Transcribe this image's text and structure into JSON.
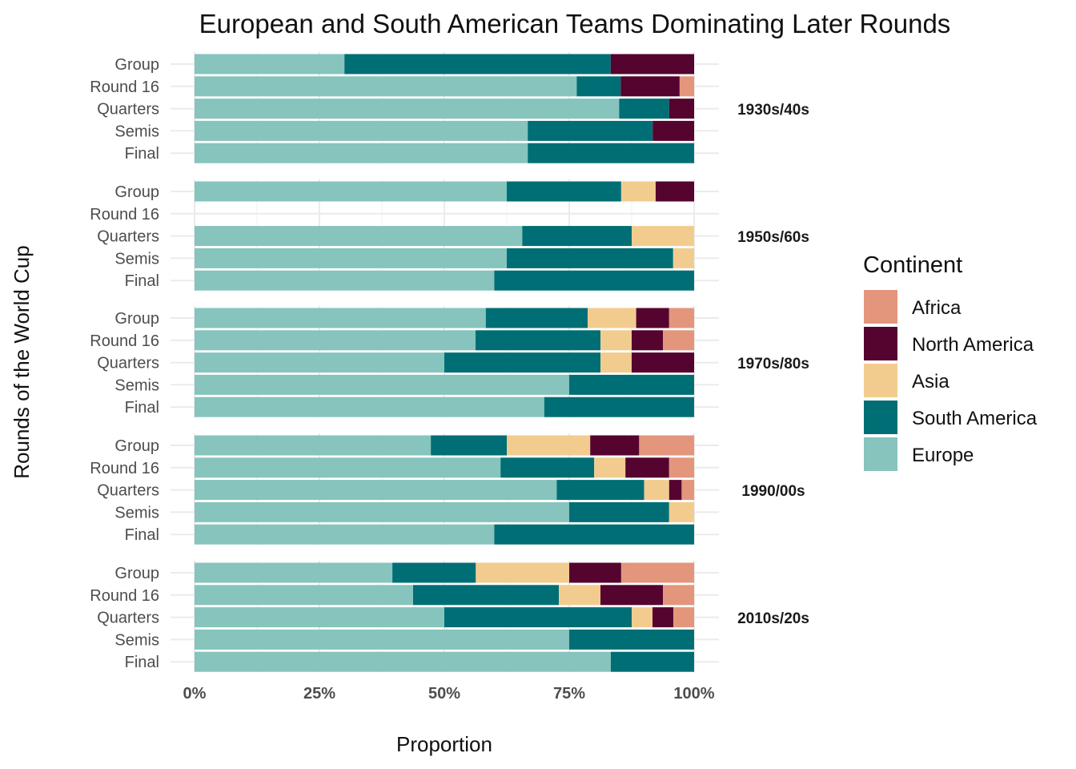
{
  "chart_data": {
    "type": "bar",
    "orientation": "horizontal",
    "stacked": true,
    "title": "European and South American Teams Dominating Later Rounds",
    "xlabel": "Proportion",
    "ylabel": "Rounds of the World Cup",
    "xlim": [
      0,
      1
    ],
    "x_ticks": [
      0,
      0.25,
      0.5,
      0.75,
      1.0
    ],
    "x_tick_labels": [
      "0%",
      "25%",
      "50%",
      "75%",
      "100%"
    ],
    "categories": [
      "Group",
      "Round 16",
      "Quarters",
      "Semis",
      "Final"
    ],
    "legend": {
      "title": "Continent",
      "position": "right",
      "entries": [
        "Africa",
        "North America",
        "Asia",
        "South America",
        "Europe"
      ]
    },
    "colors": {
      "Europe": "#86c4bd",
      "South America": "#006e75",
      "Asia": "#f2cc8f",
      "North America": "#54042e",
      "Africa": "#e3967c"
    },
    "stack_order": [
      "Europe",
      "South America",
      "Asia",
      "North America",
      "Africa"
    ],
    "grid": true,
    "panels": [
      {
        "label": "1930s/40s",
        "rows": [
          {
            "round": "Group",
            "values": {
              "Europe": 0.3,
              "South America": 0.533,
              "Asia": 0.0,
              "North America": 0.167,
              "Africa": 0.0
            }
          },
          {
            "round": "Round 16",
            "values": {
              "Europe": 0.765,
              "South America": 0.088,
              "Asia": 0.0,
              "North America": 0.118,
              "Africa": 0.029
            }
          },
          {
            "round": "Quarters",
            "values": {
              "Europe": 0.85,
              "South America": 0.1,
              "Asia": 0.0,
              "North America": 0.05,
              "Africa": 0.0
            }
          },
          {
            "round": "Semis",
            "values": {
              "Europe": 0.667,
              "South America": 0.25,
              "Asia": 0.0,
              "North America": 0.083,
              "Africa": 0.0
            }
          },
          {
            "round": "Final",
            "values": {
              "Europe": 0.667,
              "South America": 0.333,
              "Asia": 0.0,
              "North America": 0.0,
              "Africa": 0.0
            }
          }
        ]
      },
      {
        "label": "1950s/60s",
        "rows": [
          {
            "round": "Group",
            "values": {
              "Europe": 0.625,
              "South America": 0.229,
              "Asia": 0.069,
              "North America": 0.077,
              "Africa": 0.0
            }
          },
          {
            "round": "Round 16",
            "values": null
          },
          {
            "round": "Quarters",
            "values": {
              "Europe": 0.656,
              "South America": 0.219,
              "Asia": 0.125,
              "North America": 0.0,
              "Africa": 0.0
            }
          },
          {
            "round": "Semis",
            "values": {
              "Europe": 0.625,
              "South America": 0.333,
              "Asia": 0.042,
              "North America": 0.0,
              "Africa": 0.0
            }
          },
          {
            "round": "Final",
            "values": {
              "Europe": 0.6,
              "South America": 0.4,
              "Asia": 0.0,
              "North America": 0.0,
              "Africa": 0.0
            }
          }
        ]
      },
      {
        "label": "1970s/80s",
        "rows": [
          {
            "round": "Group",
            "values": {
              "Europe": 0.583,
              "South America": 0.204,
              "Asia": 0.097,
              "North America": 0.066,
              "Africa": 0.05
            }
          },
          {
            "round": "Round 16",
            "values": {
              "Europe": 0.5625,
              "South America": 0.25,
              "Asia": 0.0625,
              "North America": 0.0625,
              "Africa": 0.0625
            }
          },
          {
            "round": "Quarters",
            "values": {
              "Europe": 0.5,
              "South America": 0.3125,
              "Asia": 0.0625,
              "North America": 0.125,
              "Africa": 0.0
            }
          },
          {
            "round": "Semis",
            "values": {
              "Europe": 0.75,
              "South America": 0.25,
              "Asia": 0.0,
              "North America": 0.0,
              "Africa": 0.0
            }
          },
          {
            "round": "Final",
            "values": {
              "Europe": 0.7,
              "South America": 0.3,
              "Asia": 0.0,
              "North America": 0.0,
              "Africa": 0.0
            }
          }
        ]
      },
      {
        "label": "1990/00s",
        "rows": [
          {
            "round": "Group",
            "values": {
              "Europe": 0.473,
              "South America": 0.152,
              "Asia": 0.167,
              "North America": 0.098,
              "Africa": 0.11
            }
          },
          {
            "round": "Round 16",
            "values": {
              "Europe": 0.6125,
              "South America": 0.1875,
              "Asia": 0.0625,
              "North America": 0.0875,
              "Africa": 0.05
            }
          },
          {
            "round": "Quarters",
            "values": {
              "Europe": 0.725,
              "South America": 0.175,
              "Asia": 0.05,
              "North America": 0.025,
              "Africa": 0.025
            }
          },
          {
            "round": "Semis",
            "values": {
              "Europe": 0.75,
              "South America": 0.2,
              "Asia": 0.05,
              "North America": 0.0,
              "Africa": 0.0
            }
          },
          {
            "round": "Final",
            "values": {
              "Europe": 0.6,
              "South America": 0.4,
              "Asia": 0.0,
              "North America": 0.0,
              "Africa": 0.0
            }
          }
        ]
      },
      {
        "label": "2010s/20s",
        "rows": [
          {
            "round": "Group",
            "values": {
              "Europe": 0.396,
              "South America": 0.167,
              "Asia": 0.187,
              "North America": 0.104,
              "Africa": 0.146
            }
          },
          {
            "round": "Round 16",
            "values": {
              "Europe": 0.4375,
              "South America": 0.2917,
              "Asia": 0.0833,
              "North America": 0.125,
              "Africa": 0.0625
            }
          },
          {
            "round": "Quarters",
            "values": {
              "Europe": 0.5,
              "South America": 0.375,
              "Asia": 0.0417,
              "North America": 0.0417,
              "Africa": 0.0416
            }
          },
          {
            "round": "Semis",
            "values": {
              "Europe": 0.75,
              "South America": 0.25,
              "Asia": 0.0,
              "North America": 0.0,
              "Africa": 0.0
            }
          },
          {
            "round": "Final",
            "values": {
              "Europe": 0.8333,
              "South America": 0.1667,
              "Asia": 0.0,
              "North America": 0.0,
              "Africa": 0.0
            }
          }
        ]
      }
    ]
  }
}
